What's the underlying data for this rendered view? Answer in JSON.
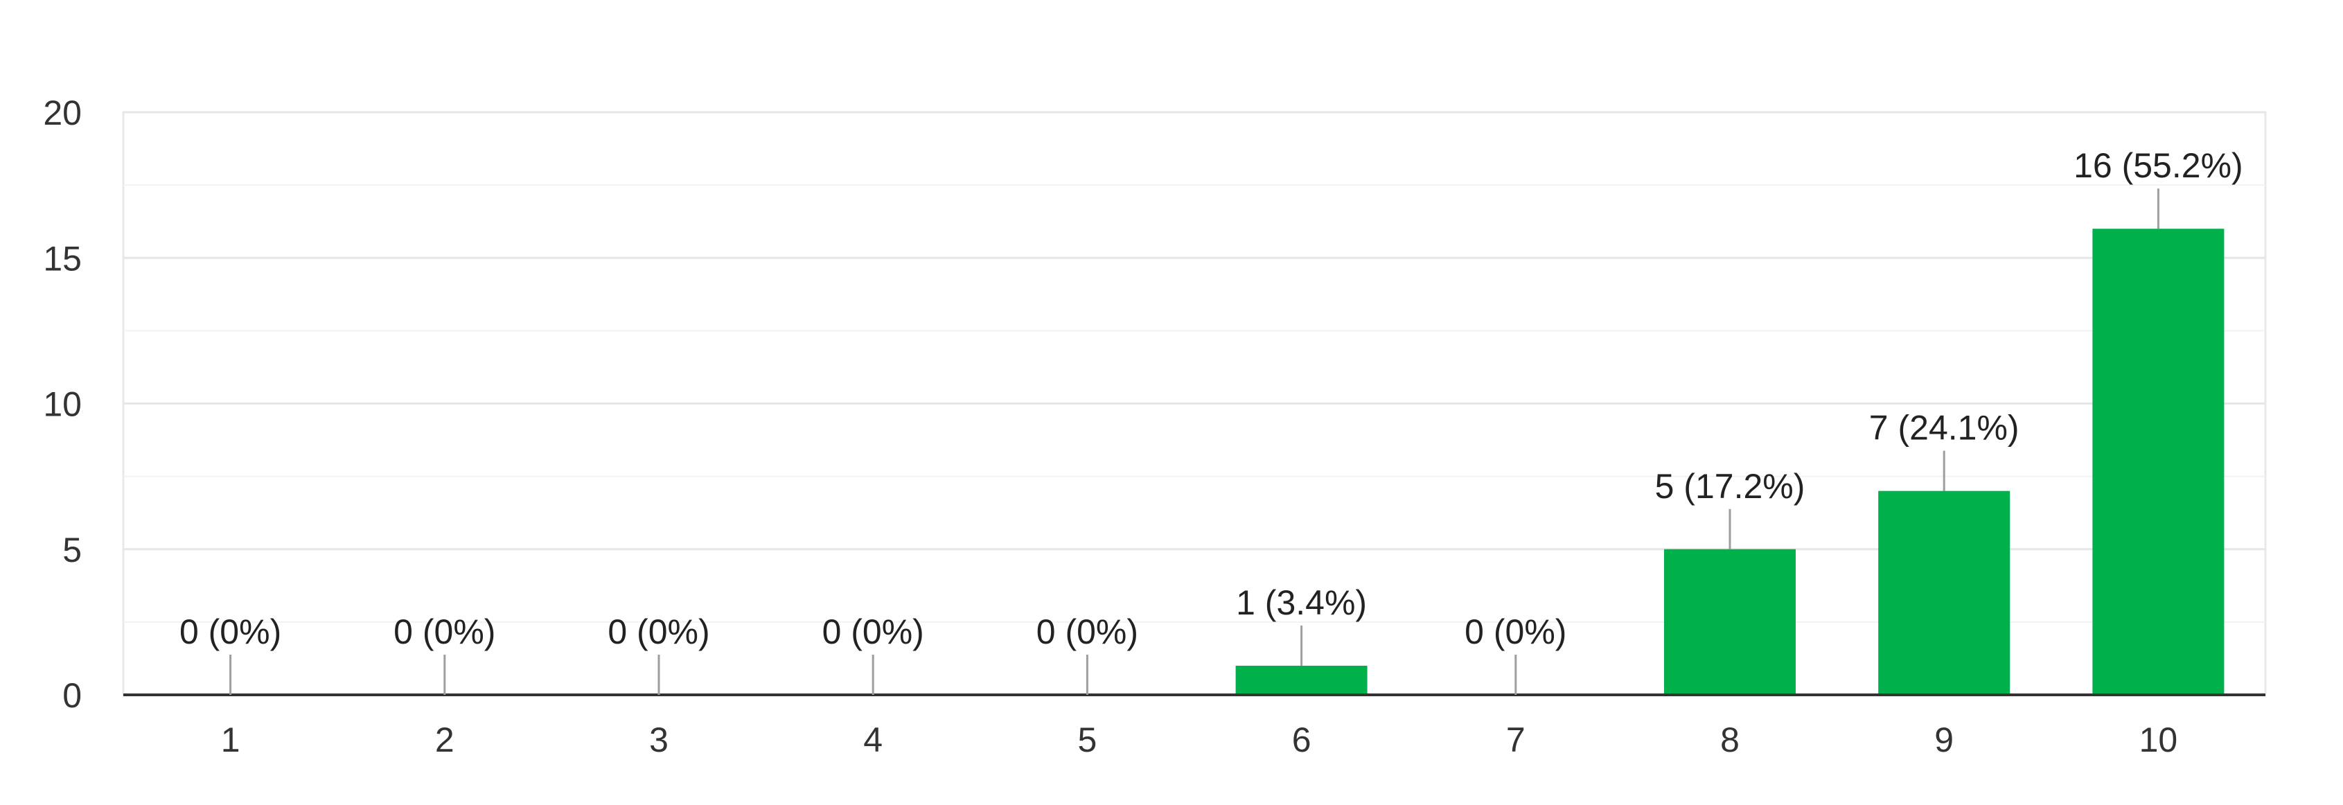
{
  "chart_data": {
    "type": "bar",
    "categories": [
      "1",
      "2",
      "3",
      "4",
      "5",
      "6",
      "7",
      "8",
      "9",
      "10"
    ],
    "values": [
      0,
      0,
      0,
      0,
      0,
      1,
      0,
      5,
      7,
      16
    ],
    "data_labels": [
      "0 (0%)",
      "0 (0%)",
      "0 (0%)",
      "0 (0%)",
      "0 (0%)",
      "1 (3.4%)",
      "0 (0%)",
      "5 (17.2%)",
      "7 (24.1%)",
      "16 (55.2%)"
    ],
    "y_ticks": [
      "0",
      "5",
      "10",
      "15",
      "20"
    ],
    "ylim": [
      0,
      20
    ],
    "title": "",
    "xlabel": "",
    "ylabel": "",
    "grid": true,
    "legend": "none",
    "bar_color": "#00b04a",
    "axis_color": "#333333",
    "grid_color": "#e8e8e8",
    "leader_color": "#9e9e9e",
    "text_color": "#333333"
  }
}
